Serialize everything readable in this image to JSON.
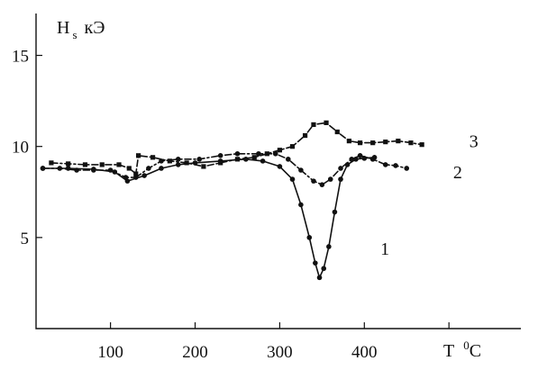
{
  "chart_data": {
    "type": "line",
    "y_axis_title": {
      "main": "H",
      "sub": "s",
      "unit": "кЭ"
    },
    "x_axis_title": {
      "main": "T",
      "sup": "0",
      "unit": "C"
    },
    "xlim": [
      12,
      585
    ],
    "ylim": [
      0,
      17.3
    ],
    "x_ticks": [
      {
        "value": 100,
        "label": "100"
      },
      {
        "value": 200,
        "label": "200"
      },
      {
        "value": 300,
        "label": "300"
      },
      {
        "value": 400,
        "label": "400"
      },
      {
        "value": 500,
        "label": ""
      }
    ],
    "y_ticks": [
      {
        "value": 5,
        "label": "5"
      },
      {
        "value": 10,
        "label": "10"
      },
      {
        "value": 15,
        "label": "15"
      }
    ],
    "grid": false,
    "series": [
      {
        "name": "1",
        "style": "solid",
        "marker": "circle",
        "points": [
          [
            20,
            8.8
          ],
          [
            50,
            8.8
          ],
          [
            80,
            8.75
          ],
          [
            105,
            8.6
          ],
          [
            120,
            8.1
          ],
          [
            140,
            8.4
          ],
          [
            160,
            8.8
          ],
          [
            180,
            9.0
          ],
          [
            200,
            9.1
          ],
          [
            230,
            9.2
          ],
          [
            260,
            9.3
          ],
          [
            280,
            9.2
          ],
          [
            300,
            8.9
          ],
          [
            315,
            8.2
          ],
          [
            325,
            6.8
          ],
          [
            335,
            5.0
          ],
          [
            342,
            3.6
          ],
          [
            347,
            2.8
          ],
          [
            352,
            3.3
          ],
          [
            358,
            4.5
          ],
          [
            365,
            6.4
          ],
          [
            372,
            8.2
          ],
          [
            380,
            9.0
          ],
          [
            390,
            9.3
          ],
          [
            400,
            9.35
          ],
          [
            412,
            9.4
          ]
        ],
        "label_at": [
          419,
          4.4
        ]
      },
      {
        "name": "2",
        "style": "dashdot",
        "marker": "circle",
        "points": [
          [
            20,
            8.8
          ],
          [
            40,
            8.8
          ],
          [
            60,
            8.7
          ],
          [
            80,
            8.7
          ],
          [
            100,
            8.7
          ],
          [
            118,
            8.3
          ],
          [
            130,
            8.3
          ],
          [
            145,
            8.8
          ],
          [
            160,
            9.2
          ],
          [
            180,
            9.3
          ],
          [
            205,
            9.3
          ],
          [
            230,
            9.5
          ],
          [
            250,
            9.6
          ],
          [
            275,
            9.6
          ],
          [
            295,
            9.6
          ],
          [
            310,
            9.3
          ],
          [
            325,
            8.7
          ],
          [
            340,
            8.1
          ],
          [
            350,
            7.9
          ],
          [
            360,
            8.2
          ],
          [
            372,
            8.8
          ],
          [
            385,
            9.3
          ],
          [
            395,
            9.5
          ],
          [
            410,
            9.3
          ],
          [
            425,
            9.0
          ],
          [
            437,
            8.95
          ],
          [
            450,
            8.8
          ]
        ],
        "label_at": [
          505,
          8.6
        ]
      },
      {
        "name": "3",
        "style": "dashdot",
        "marker": "square",
        "points": [
          [
            30,
            9.1
          ],
          [
            50,
            9.05
          ],
          [
            70,
            9.0
          ],
          [
            90,
            9.0
          ],
          [
            110,
            9.0
          ],
          [
            122,
            8.8
          ],
          [
            130,
            8.5
          ],
          [
            133,
            9.5
          ],
          [
            150,
            9.4
          ],
          [
            170,
            9.2
          ],
          [
            190,
            9.1
          ],
          [
            210,
            8.9
          ],
          [
            230,
            9.1
          ],
          [
            250,
            9.3
          ],
          [
            270,
            9.4
          ],
          [
            285,
            9.6
          ],
          [
            300,
            9.8
          ],
          [
            315,
            10.0
          ],
          [
            330,
            10.6
          ],
          [
            340,
            11.2
          ],
          [
            355,
            11.3
          ],
          [
            368,
            10.8
          ],
          [
            382,
            10.3
          ],
          [
            395,
            10.2
          ],
          [
            410,
            10.2
          ],
          [
            425,
            10.25
          ],
          [
            440,
            10.3
          ],
          [
            455,
            10.2
          ],
          [
            468,
            10.1
          ]
        ],
        "label_at": [
          524,
          10.3
        ]
      }
    ]
  }
}
